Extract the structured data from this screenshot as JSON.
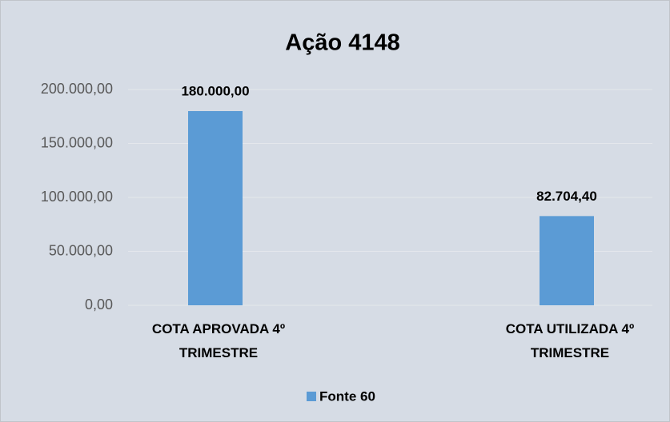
{
  "chart_data": {
    "type": "bar",
    "title": "Ação 4148",
    "categories": [
      "COTA APROVADA 4º TRIMESTRE",
      "COTA UTILIZADA 4º TRIMESTRE"
    ],
    "series": [
      {
        "name": "Fonte 60",
        "color": "#5b9bd5",
        "values": [
          180000,
          82704.4
        ],
        "value_labels": [
          "180.000,00",
          "82.704,40"
        ]
      }
    ],
    "ylim": [
      0,
      200000
    ],
    "yticks": [
      {
        "value": 0,
        "label": "0,00"
      },
      {
        "value": 50000,
        "label": "50.000,00"
      },
      {
        "value": 100000,
        "label": "100.000,00"
      },
      {
        "value": 150000,
        "label": "150.000,00"
      },
      {
        "value": 200000,
        "label": "200.000,00"
      }
    ],
    "grid": true,
    "legend": "bottom"
  }
}
